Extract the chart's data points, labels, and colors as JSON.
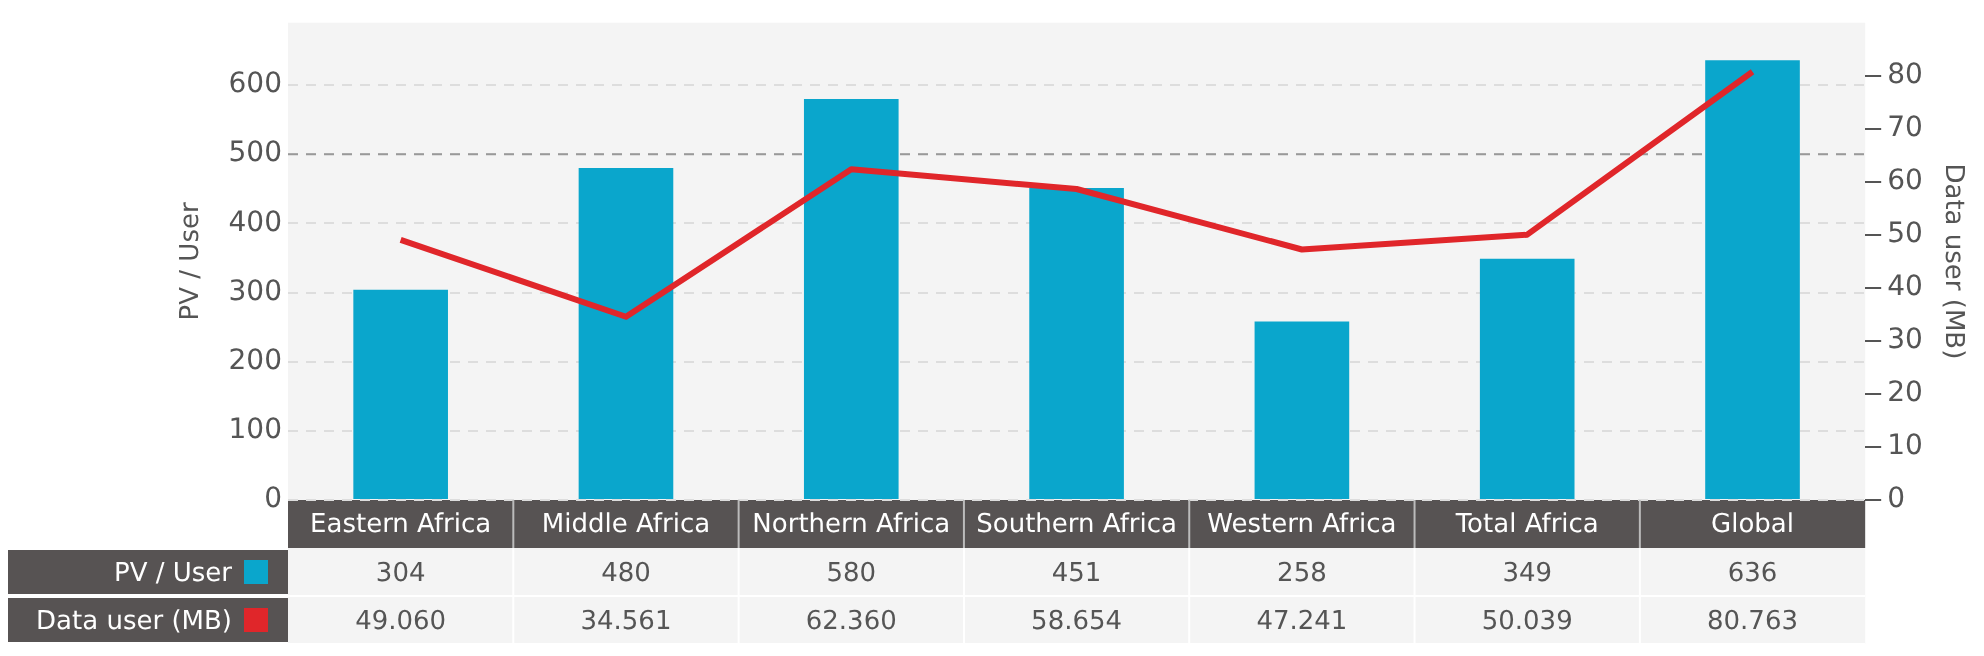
{
  "chart_data": {
    "type": "bar",
    "ylabel": "PV / User",
    "y2label": "Data user (MB)",
    "categories": [
      "Eastern Africa",
      "Middle Africa",
      "Northern Africa",
      "Southern Africa",
      "Western Africa",
      "Total Africa",
      "Global"
    ],
    "series": [
      {
        "name": "PV / User",
        "color": "#0aa6cc",
        "values": [
          304,
          480,
          580,
          451,
          258,
          349,
          636
        ],
        "value_labels": [
          "304",
          "480",
          "580",
          "451",
          "258",
          "349",
          "636"
        ]
      },
      {
        "name": "Data user (MB)",
        "type": "line",
        "axis": "y2",
        "color": "#e0262a",
        "values": [
          49.06,
          34.561,
          62.36,
          58.654,
          47.241,
          50.039,
          80.763
        ],
        "value_labels": [
          "49.060",
          "34.561",
          "62.360",
          "58.654",
          "47.241",
          "50.039",
          "80.763"
        ]
      }
    ],
    "ylim": [
      0,
      690
    ],
    "yticks": [
      0,
      100,
      200,
      300,
      400,
      500,
      600
    ],
    "y2lim": [
      0,
      90
    ],
    "y2ticks": [
      0,
      10,
      20,
      30,
      40,
      50,
      60,
      70,
      80
    ],
    "ref_lines": [
      {
        "axis": "y",
        "value": 500,
        "color": "#999999",
        "line_style": "dashed"
      }
    ],
    "grid": "y",
    "legend": "bottom left",
    "marker": "none"
  }
}
